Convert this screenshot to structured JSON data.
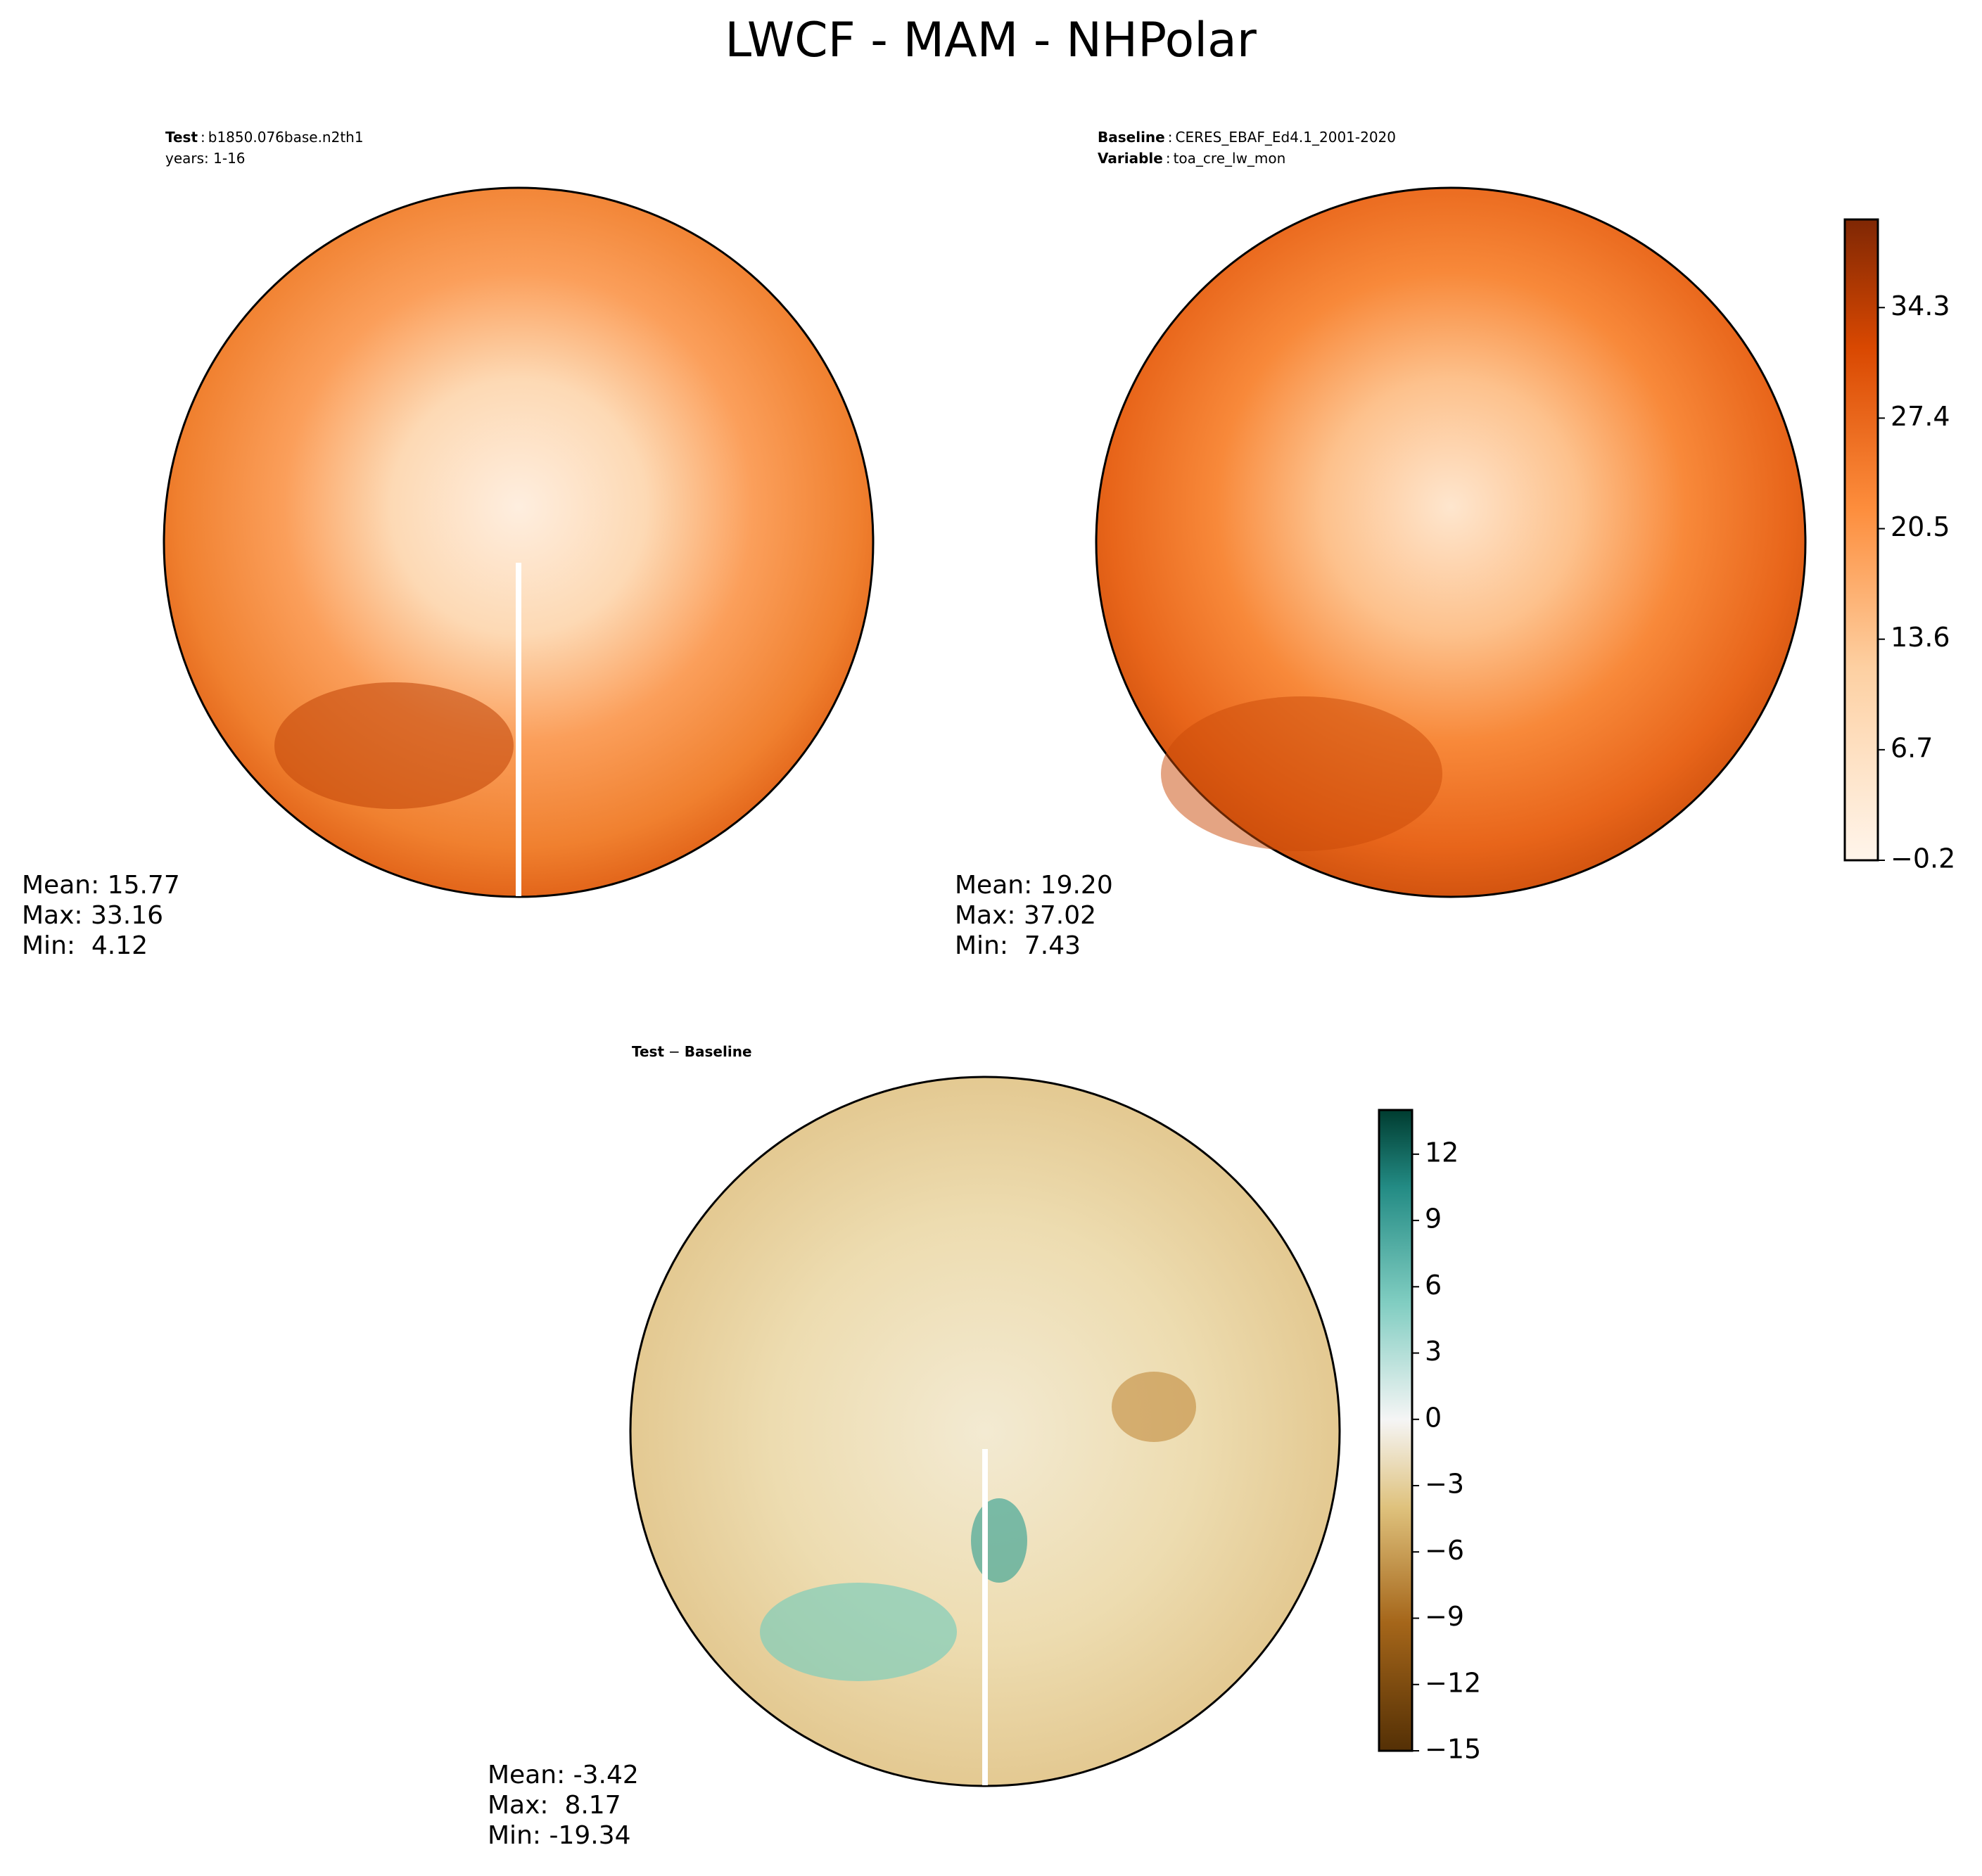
{
  "title": "LWCF - MAM - NHPolar",
  "panels": [
    {
      "header": [
        {
          "key": "Test",
          "value": "b1850.076base.n2th1"
        },
        {
          "value": "years: 1-16"
        }
      ],
      "stats": [
        "Mean: 15.77",
        "Max: 33.16",
        "Min:  4.12"
      ]
    },
    {
      "header": [
        {
          "key": "Baseline",
          "value": "CERES_EBAF_Ed4.1_2001-2020"
        },
        {
          "key": "Variable",
          "value": "toa_cre_lw_mon"
        }
      ],
      "stats": [
        "Mean: 19.20",
        "Max: 37.02",
        "Min:  7.43"
      ]
    },
    {
      "header": [
        {
          "key": "Test",
          "op": "−",
          "value": "Baseline"
        }
      ],
      "stats": [
        "Mean: -3.42",
        "Max:  8.17",
        "Min: -19.34"
      ]
    }
  ],
  "colorbars": [
    {
      "lim": [
        -0.2,
        39.8
      ],
      "ticks": [
        {
          "value": -0.2,
          "label": "−0.2"
        },
        6.7,
        13.6,
        20.5,
        27.4,
        34.3
      ]
    },
    {
      "lim": [
        -15,
        14
      ],
      "ticks": [
        {
          "value": -15,
          "label": "−15"
        },
        {
          "value": -12,
          "label": "−12"
        },
        {
          "value": -9,
          "label": "−9"
        },
        {
          "value": -6,
          "label": "−6"
        },
        {
          "value": -3,
          "label": "−3"
        },
        0,
        3,
        6,
        9,
        12
      ]
    }
  ]
}
